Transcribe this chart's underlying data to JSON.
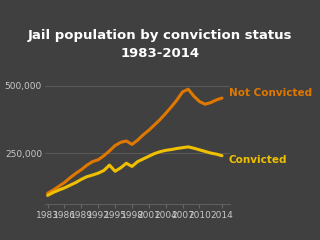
{
  "title": "Jail population by conviction status\n1983-2014",
  "background_color": "#404040",
  "text_color": "#c8c8c8",
  "years": [
    1983,
    1984,
    1985,
    1986,
    1987,
    1988,
    1989,
    1990,
    1991,
    1992,
    1993,
    1994,
    1995,
    1996,
    1997,
    1998,
    1999,
    2000,
    2001,
    2002,
    2003,
    2004,
    2005,
    2006,
    2007,
    2008,
    2009,
    2010,
    2011,
    2012,
    2013,
    2014
  ],
  "not_convicted": [
    100000,
    112000,
    126000,
    140000,
    158000,
    174000,
    188000,
    205000,
    218000,
    225000,
    240000,
    258000,
    278000,
    290000,
    295000,
    282000,
    298000,
    318000,
    335000,
    355000,
    375000,
    398000,
    422000,
    448000,
    478000,
    488000,
    462000,
    442000,
    432000,
    438000,
    448000,
    455000
  ],
  "convicted": [
    92000,
    103000,
    112000,
    120000,
    130000,
    140000,
    152000,
    162000,
    168000,
    175000,
    185000,
    205000,
    182000,
    195000,
    212000,
    200000,
    218000,
    228000,
    238000,
    248000,
    255000,
    260000,
    263000,
    267000,
    270000,
    273000,
    268000,
    262000,
    256000,
    250000,
    246000,
    240000
  ],
  "not_convicted_color": "#e07800",
  "convicted_color": "#f0c000",
  "label_not_convicted": "Not Convicted",
  "label_convicted": "Convicted",
  "yticks": [
    250000,
    500000
  ],
  "ytick_labels": [
    "250,000",
    "500,000"
  ],
  "xtick_years": [
    1983,
    1986,
    1989,
    1992,
    1995,
    1998,
    2001,
    2004,
    2007,
    2010,
    2014
  ],
  "ylim": [
    60000,
    570000
  ],
  "xlim": [
    1982.5,
    2015.5
  ],
  "line_width": 2.2,
  "grid_color": "#666666",
  "title_fontsize": 9.5,
  "label_fontsize": 7.5,
  "tick_fontsize": 6.5
}
